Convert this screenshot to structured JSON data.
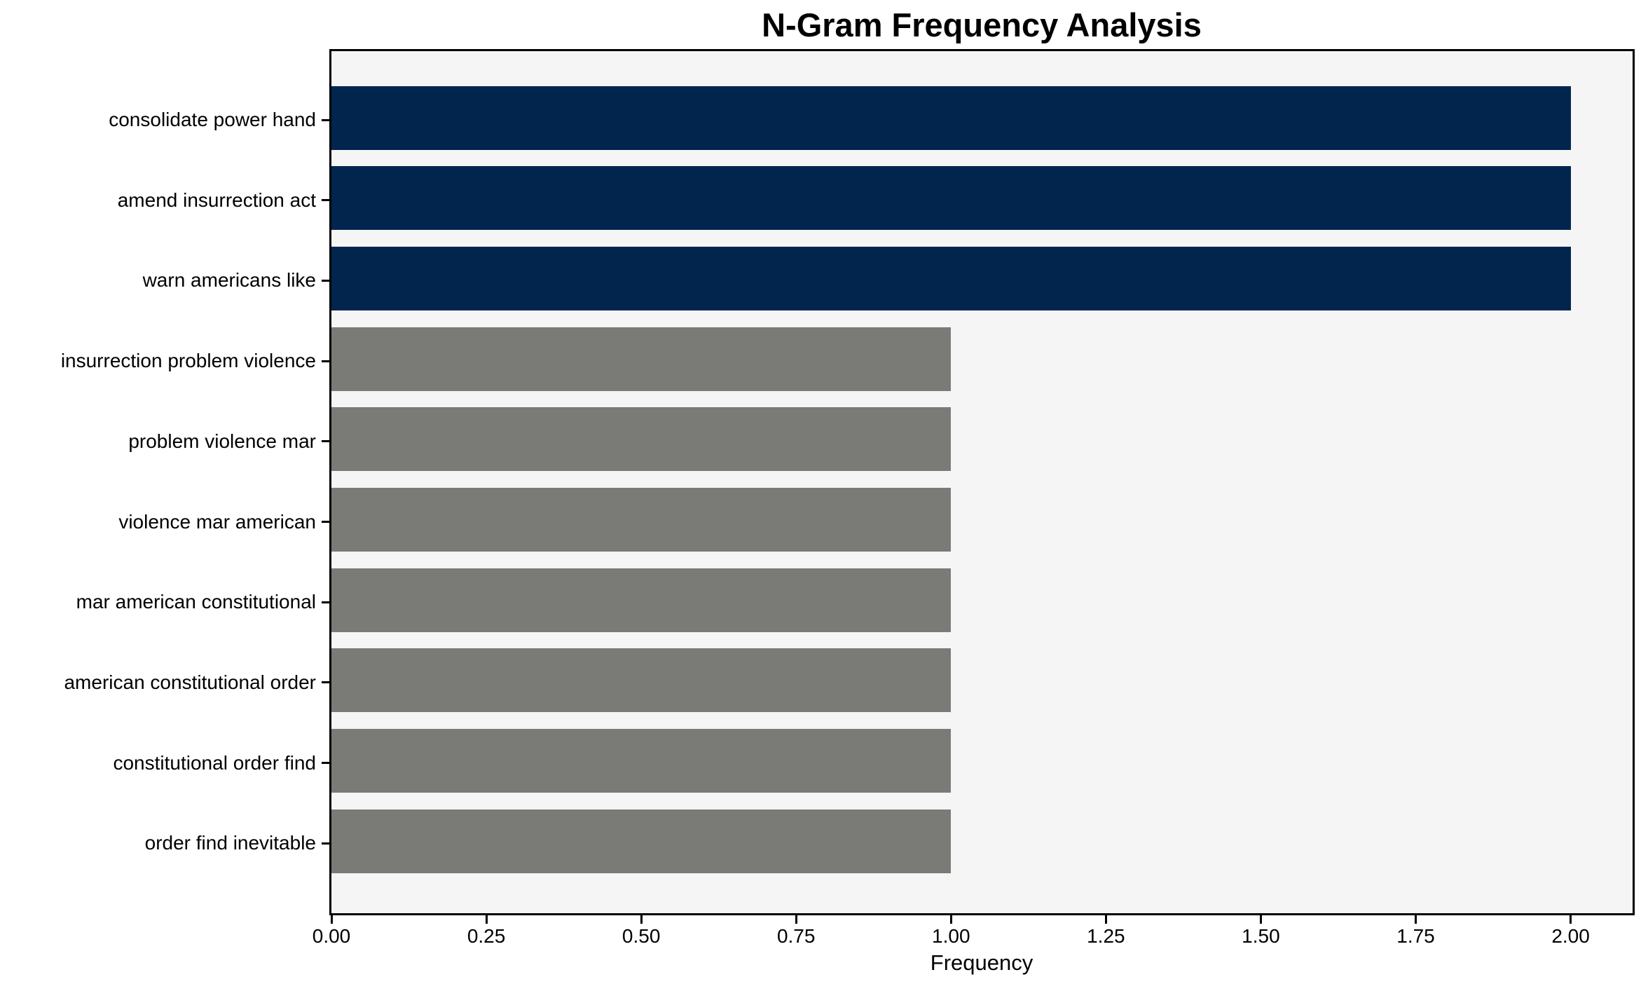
{
  "colors": {
    "highlight": "#02254e",
    "normal": "#7a7a77",
    "plot_background": "#f5f5f5",
    "figure_background": "#ffffff",
    "spine": "#000000",
    "text": "#000000"
  },
  "chart_data": {
    "type": "bar",
    "orientation": "horizontal",
    "title": "N-Gram Frequency Analysis",
    "xlabel": "Frequency",
    "ylabel": "",
    "categories": [
      "consolidate power hand",
      "amend insurrection act",
      "warn americans like",
      "insurrection problem violence",
      "problem violence mar",
      "violence mar american",
      "mar american constitutional",
      "american constitutional order",
      "constitutional order find",
      "order find inevitable"
    ],
    "values": [
      2,
      2,
      2,
      1,
      1,
      1,
      1,
      1,
      1,
      1
    ],
    "bar_colors": [
      "highlight",
      "highlight",
      "highlight",
      "normal",
      "normal",
      "normal",
      "normal",
      "normal",
      "normal",
      "normal"
    ],
    "xlim": [
      0,
      2.1
    ],
    "xticks": [
      0,
      0.25,
      0.5,
      0.75,
      1.0,
      1.25,
      1.5,
      1.75,
      2.0
    ],
    "xtick_labels": [
      "0.00",
      "0.25",
      "0.50",
      "0.75",
      "1.00",
      "1.25",
      "1.50",
      "1.75",
      "2.00"
    ],
    "grid": false,
    "legend": null
  }
}
